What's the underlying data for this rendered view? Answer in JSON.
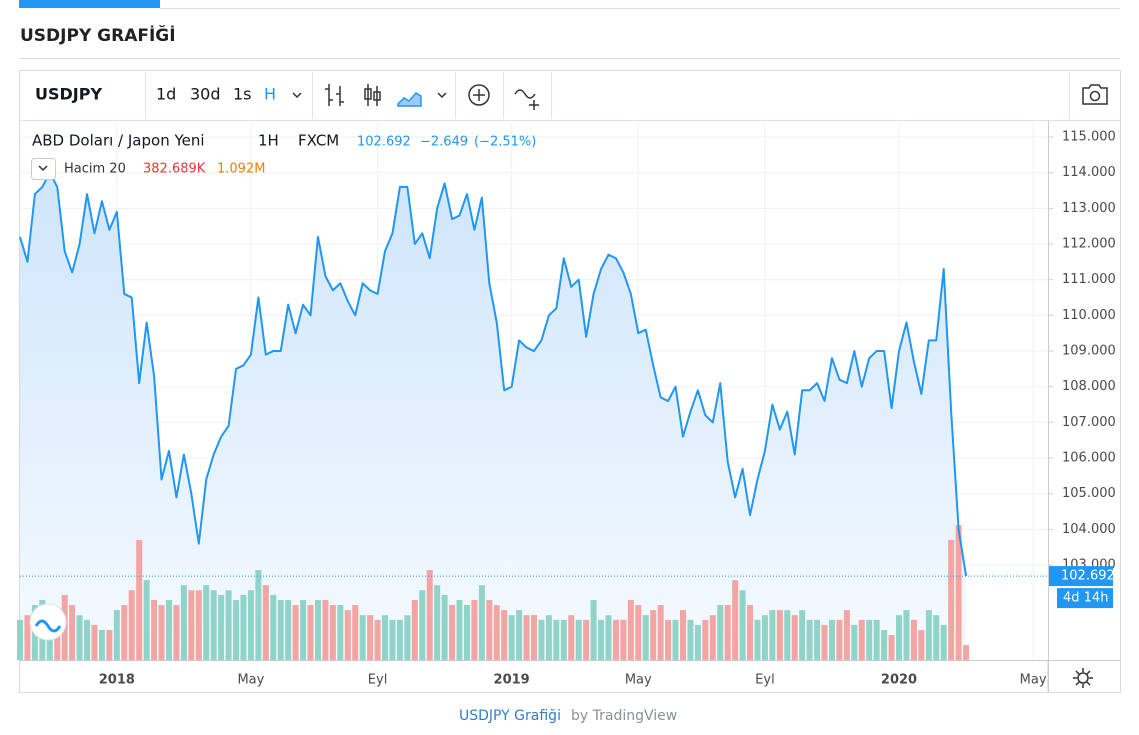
{
  "header": {
    "title": "USDJPY GRAFİĞİ"
  },
  "toolbar": {
    "symbol": "USDJPY",
    "intervals": [
      "1d",
      "30d",
      "1s",
      "H"
    ]
  },
  "chart_data": {
    "type": "area",
    "exchange": "FXCM",
    "interval": "1H",
    "last_value": "102.692",
    "change": "−2.649",
    "change_pct": "(−2.51%)",
    "countdown": "4d 14h",
    "grid": true,
    "categories": [
      null,
      null,
      null,
      null,
      null,
      null,
      null,
      null,
      null,
      null,
      null,
      null,
      null,
      "2018",
      null,
      null,
      null,
      null,
      null,
      null,
      null,
      null,
      null,
      null,
      null,
      null,
      null,
      null,
      null,
      null,
      null,
      "May",
      null,
      null,
      null,
      null,
      null,
      null,
      null,
      null,
      null,
      null,
      null,
      null,
      null,
      null,
      null,
      null,
      "Eyl",
      null,
      null,
      null,
      null,
      null,
      null,
      null,
      null,
      null,
      null,
      null,
      null,
      null,
      null,
      null,
      null,
      null,
      "2019",
      null,
      null,
      null,
      null,
      null,
      null,
      null,
      null,
      null,
      null,
      null,
      null,
      null,
      null,
      null,
      null,
      "May",
      null,
      null,
      null,
      null,
      null,
      null,
      null,
      null,
      null,
      null,
      null,
      null,
      null,
      null,
      null,
      null,
      "Eyl",
      null,
      null,
      null,
      null,
      null,
      null,
      null,
      null,
      null,
      null,
      null,
      null,
      null,
      null,
      null,
      null,
      null,
      "2020",
      null,
      null,
      null,
      null,
      null,
      null,
      null,
      null,
      null,
      null,
      null,
      null,
      null,
      null,
      null,
      null,
      null,
      "May",
      null,
      null
    ],
    "ylim": [
      100.34,
      115.42
    ],
    "yticks": [
      {
        "value": 103,
        "label": "103.000"
      },
      {
        "value": 104,
        "label": "104.000"
      },
      {
        "value": 105,
        "label": "105.000"
      },
      {
        "value": 106,
        "label": "106.000"
      },
      {
        "value": 107,
        "label": "107.000"
      },
      {
        "value": 108,
        "label": "108.000"
      },
      {
        "value": 109,
        "label": "109.000"
      },
      {
        "value": 110,
        "label": "110.000"
      },
      {
        "value": 111,
        "label": "111.000"
      },
      {
        "value": 112,
        "label": "112.000"
      },
      {
        "value": 113,
        "label": "113.000"
      },
      {
        "value": 114,
        "label": "114.000"
      },
      {
        "value": 115,
        "label": "115.000"
      }
    ],
    "vlim": [
      0,
      3.9
    ],
    "series": [
      {
        "name": "ABD Doları / Japon Yeni",
        "color": "#2196f3",
        "values": [
          112.2,
          111.5,
          113.4,
          113.6,
          114.0,
          113.6,
          111.8,
          111.2,
          112.0,
          113.4,
          112.3,
          113.2,
          112.4,
          112.9,
          110.6,
          110.5,
          108.1,
          109.8,
          108.3,
          105.4,
          106.2,
          104.9,
          106.1,
          105.0,
          103.6,
          105.4,
          106.1,
          106.6,
          106.9,
          108.5,
          108.6,
          108.9,
          110.5,
          108.9,
          109.0,
          109.0,
          110.3,
          109.5,
          110.3,
          110.0,
          112.2,
          111.1,
          110.7,
          110.9,
          110.4,
          110.0,
          110.9,
          110.7,
          110.6,
          111.8,
          112.3,
          113.6,
          113.6,
          112.0,
          112.3,
          111.6,
          113.0,
          113.7,
          112.7,
          112.8,
          113.4,
          112.4,
          113.3,
          110.9,
          109.8,
          107.9,
          108.0,
          109.3,
          109.1,
          109.0,
          109.3,
          110.0,
          110.2,
          111.6,
          110.8,
          111.0,
          109.4,
          110.6,
          111.3,
          111.7,
          111.6,
          111.2,
          110.6,
          109.5,
          109.6,
          108.6,
          107.7,
          107.6,
          108.0,
          106.6,
          107.3,
          107.9,
          107.2,
          107.0,
          108.1,
          105.9,
          104.9,
          105.7,
          104.4,
          105.4,
          106.2,
          107.5,
          106.8,
          107.3,
          106.1,
          107.9,
          107.9,
          108.1,
          107.6,
          108.8,
          108.2,
          108.1,
          109.0,
          108.0,
          108.8,
          109.0,
          109.0,
          107.4,
          109.0,
          109.8,
          108.7,
          107.8,
          109.3,
          109.3,
          111.3,
          107.3,
          104.0,
          102.692,
          null,
          null,
          null,
          null,
          null,
          null,
          null,
          null,
          null,
          null,
          null
        ]
      },
      {
        "name": "Hacim 20",
        "type": "bar",
        "up_color": "#90d4c9",
        "down_color": "#f3a5a3",
        "legend_values": [
          "382.689K",
          "1.092M"
        ],
        "values": [
          1.03,
          1.15,
          1.41,
          1.54,
          1.28,
          1.15,
          1.67,
          1.41,
          1.15,
          1.03,
          0.9,
          0.77,
          0.77,
          1.28,
          1.41,
          1.79,
          3.08,
          2.05,
          1.54,
          1.41,
          1.54,
          1.41,
          1.92,
          1.79,
          1.79,
          1.92,
          1.79,
          1.67,
          1.79,
          1.54,
          1.67,
          1.79,
          2.31,
          1.92,
          1.67,
          1.54,
          1.54,
          1.41,
          1.54,
          1.41,
          1.54,
          1.54,
          1.41,
          1.41,
          1.28,
          1.41,
          1.15,
          1.15,
          1.03,
          1.15,
          1.03,
          1.03,
          1.15,
          1.54,
          1.79,
          2.31,
          1.92,
          1.67,
          1.41,
          1.54,
          1.41,
          1.54,
          1.92,
          1.54,
          1.41,
          1.28,
          1.15,
          1.28,
          1.15,
          1.15,
          1.03,
          1.15,
          1.03,
          1.03,
          1.15,
          1.03,
          1.03,
          1.54,
          1.03,
          1.15,
          1.03,
          1.03,
          1.54,
          1.41,
          1.15,
          1.28,
          1.41,
          1.03,
          1.03,
          1.28,
          1.03,
          0.9,
          1.03,
          1.15,
          1.41,
          1.41,
          2.05,
          1.79,
          1.41,
          1.03,
          1.15,
          1.28,
          1.28,
          1.28,
          1.15,
          1.28,
          1.03,
          1.03,
          0.9,
          1.03,
          1.03,
          1.28,
          0.9,
          1.03,
          1.03,
          1.03,
          0.77,
          0.64,
          1.15,
          1.28,
          1.03,
          0.77,
          1.28,
          1.15,
          0.9,
          3.08,
          3.46,
          0.382689,
          null,
          null,
          null,
          null,
          null,
          null,
          null,
          null,
          null,
          null,
          null
        ]
      }
    ]
  },
  "footer": {
    "link": "USDJPY Grafiği",
    "by": "by TradingView"
  }
}
